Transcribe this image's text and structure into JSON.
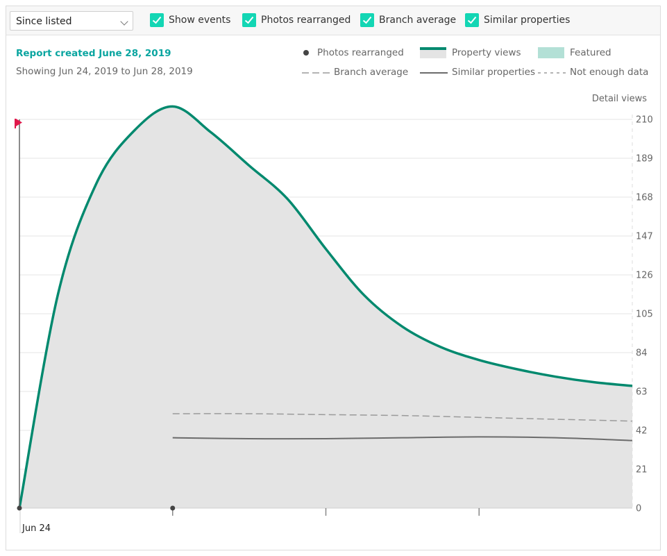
{
  "toolbar": {
    "period_select": "Since listed",
    "checkboxes": [
      {
        "label": "Show events",
        "checked": true
      },
      {
        "label": "Photos rearranged",
        "checked": true
      },
      {
        "label": "Branch average",
        "checked": true
      },
      {
        "label": "Similar properties",
        "checked": true
      }
    ]
  },
  "report": {
    "title": "Report created June 28, 2019",
    "range": "Showing Jun 24, 2019 to Jun 28, 2019"
  },
  "legend": {
    "photos_rearranged": "Photos rearranged",
    "property_views": "Property views",
    "featured": "Featured",
    "branch_average": "Branch average",
    "similar_properties": "Similar properties",
    "not_enough_data": "Not enough data"
  },
  "colors": {
    "property_line": "#00896e",
    "area_fill": "#e4e4e4",
    "featured": "#b3e0d6",
    "branch_line": "#9a9a9a",
    "similar_line": "#6b6b6b",
    "accent": "#0aa5a0",
    "checkbox": "#13d6b4",
    "event_flag": "#e0184b"
  },
  "chart_data": {
    "type": "area",
    "ylabel": "Detail views",
    "ylim": [
      0,
      210
    ],
    "yticks": [
      0,
      21,
      42,
      63,
      84,
      105,
      126,
      147,
      168,
      189,
      210
    ],
    "x_tick_labels": [
      "Jun 24",
      "",
      "",
      ""
    ],
    "grid": true,
    "legend_placement": "top-right",
    "series": [
      {
        "name": "Property views",
        "x": [
          0,
          0.25,
          0.5,
          0.75,
          1,
          1.25,
          1.5,
          1.75,
          2,
          2.25,
          2.5,
          2.75,
          3,
          3.25,
          3.5,
          3.75,
          4
        ],
        "values": [
          0,
          115,
          175,
          204,
          217,
          203,
          185,
          167,
          140,
          115,
          98,
          87,
          80,
          75,
          71,
          68,
          66
        ]
      },
      {
        "name": "Branch average",
        "x": [
          1,
          1.5,
          2,
          2.5,
          3,
          3.5,
          4
        ],
        "values": [
          51,
          51,
          50.5,
          50,
          49,
          48,
          47
        ]
      },
      {
        "name": "Similar properties",
        "x": [
          1,
          1.5,
          2,
          2.5,
          3,
          3.5,
          4
        ],
        "values": [
          38,
          37.5,
          37.5,
          38,
          38.5,
          38,
          36.5
        ]
      }
    ],
    "events": [
      {
        "name": "Photos rearranged",
        "x": 0
      },
      {
        "name": "Photos rearranged",
        "x": 1
      }
    ]
  }
}
